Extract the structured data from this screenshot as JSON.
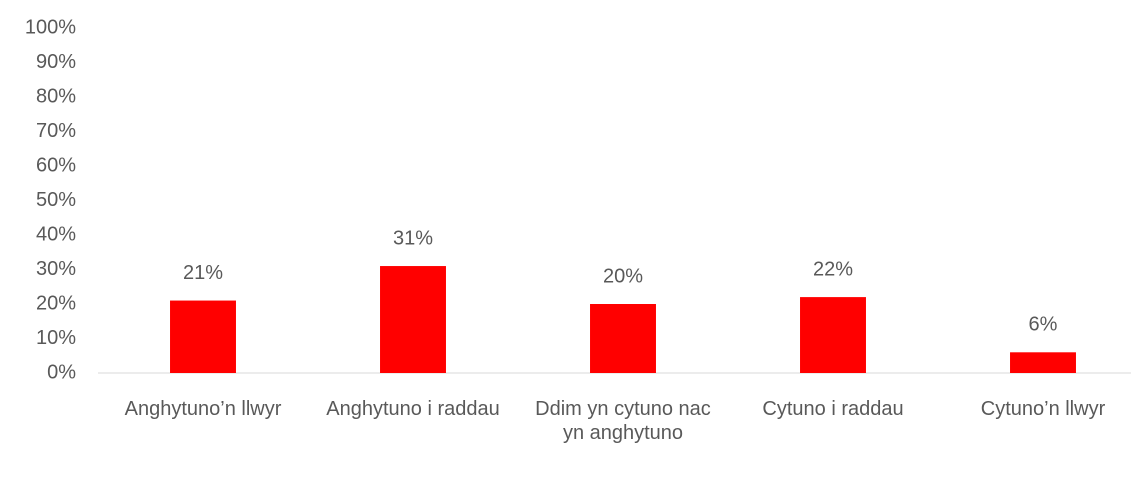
{
  "chart_data": {
    "type": "bar",
    "categories": [
      "Anghytuno’n llwyr",
      "Anghytuno i raddau",
      "Ddim yn cytuno nac yn anghytuno",
      "Cytuno i raddau",
      "Cytuno’n llwyr"
    ],
    "values": [
      21,
      31,
      20,
      22,
      6
    ],
    "value_labels": [
      "21%",
      "31%",
      "20%",
      "22%",
      "6%"
    ],
    "color": "#ff0000",
    "ylim": [
      0,
      100
    ],
    "yticks": [
      {
        "value": 0,
        "label": "0%"
      },
      {
        "value": 10,
        "label": "10%"
      },
      {
        "value": 20,
        "label": "20%"
      },
      {
        "value": 30,
        "label": "30%"
      },
      {
        "value": 40,
        "label": "40%"
      },
      {
        "value": 50,
        "label": "50%"
      },
      {
        "value": 60,
        "label": "60%"
      },
      {
        "value": 70,
        "label": "70%"
      },
      {
        "value": 80,
        "label": "80%"
      },
      {
        "value": 90,
        "label": "90%"
      },
      {
        "value": 100,
        "label": "100%"
      }
    ],
    "grid": false
  }
}
